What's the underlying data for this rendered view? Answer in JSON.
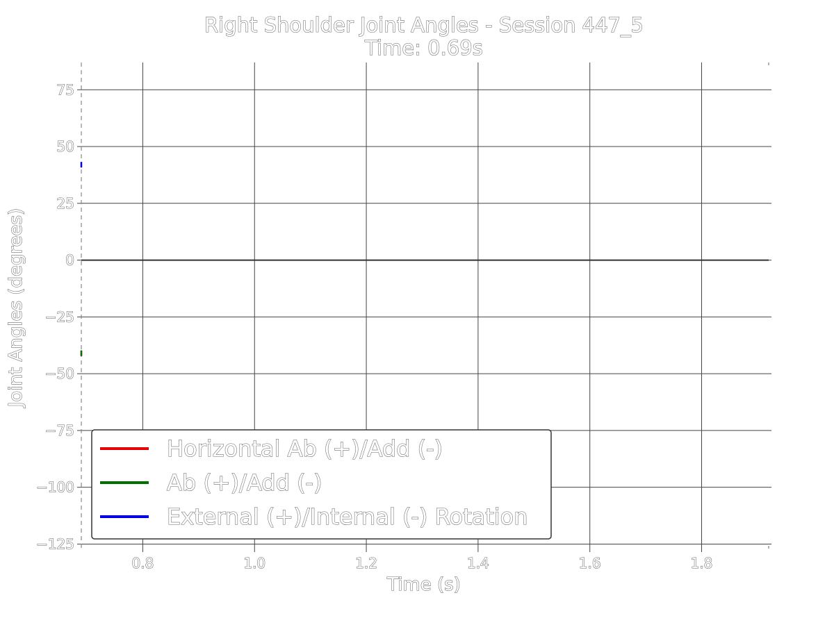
{
  "chart_data": {
    "type": "line",
    "title": "Right Shoulder Joint Angles - Session 447_5",
    "subtitle": "Time: 0.69s",
    "xlabel": "Time (s)",
    "ylabel": "Joint Angles (degrees)",
    "xlim": [
      0.69,
      1.92
    ],
    "ylim": [
      -127,
      87
    ],
    "x_ticks": [
      0.8,
      1.0,
      1.2,
      1.4,
      1.6,
      1.8
    ],
    "x_tick_labels": [
      "0.8",
      "1.0",
      "1.2",
      "1.4",
      "1.6",
      "1.8"
    ],
    "y_ticks": [
      75,
      50,
      25,
      0,
      -25,
      -50,
      -75,
      -100,
      -125
    ],
    "y_tick_labels": [
      "75",
      "50",
      "25",
      "0",
      "−25",
      "−50",
      "−75",
      "−100",
      "−125"
    ],
    "grid": true,
    "zero_line": true,
    "current_time": 0.69,
    "legend_position": "lower-left",
    "series": [
      {
        "name": "Horizontal Ab (+)/Add (-)",
        "color": "#e00000",
        "x": [
          0.69
        ],
        "y": [
          -41
        ]
      },
      {
        "name": "Ab (+)/Add (-)",
        "color": "#007000",
        "x": [
          0.69
        ],
        "y": [
          -41
        ]
      },
      {
        "name": "External (+)/Internal (-) Rotation",
        "color": "#0000e0",
        "x": [
          0.69
        ],
        "y": [
          42
        ]
      }
    ]
  }
}
